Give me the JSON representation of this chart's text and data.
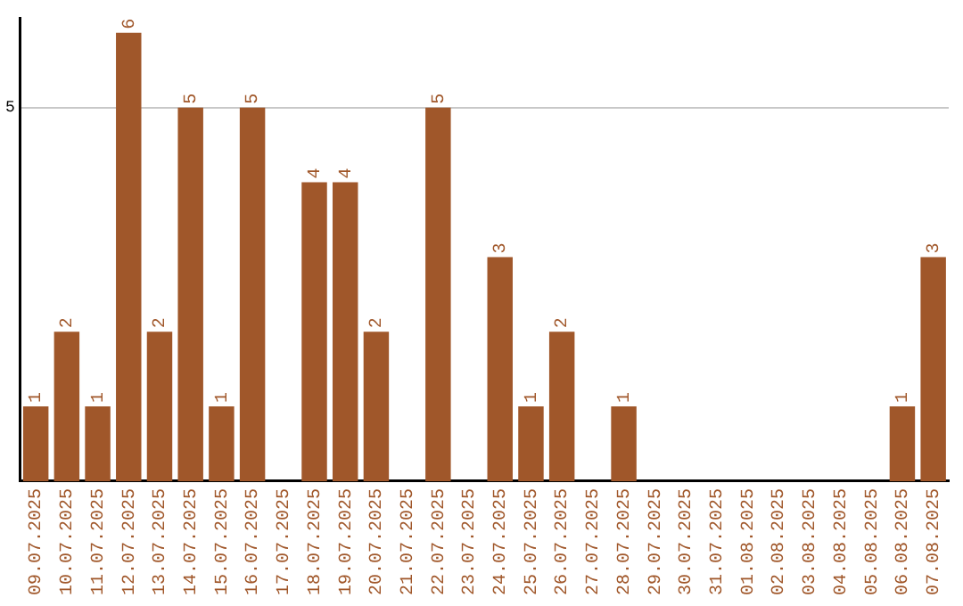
{
  "chart_data": {
    "type": "bar",
    "categories": [
      "09.07.2025",
      "10.07.2025",
      "11.07.2025",
      "12.07.2025",
      "13.07.2025",
      "14.07.2025",
      "15.07.2025",
      "16.07.2025",
      "17.07.2025",
      "18.07.2025",
      "19.07.2025",
      "20.07.2025",
      "21.07.2025",
      "22.07.2025",
      "23.07.2025",
      "24.07.2025",
      "25.07.2025",
      "26.07.2025",
      "27.07.2025",
      "28.07.2025",
      "29.07.2025",
      "30.07.2025",
      "31.07.2025",
      "01.08.2025",
      "02.08.2025",
      "03.08.2025",
      "04.08.2025",
      "05.08.2025",
      "06.08.2025",
      "07.08.2025"
    ],
    "values": [
      1,
      2,
      1,
      6,
      2,
      5,
      1,
      5,
      0,
      4,
      4,
      2,
      0,
      5,
      0,
      3,
      1,
      2,
      0,
      1,
      0,
      0,
      0,
      0,
      0,
      0,
      0,
      0,
      1,
      3
    ],
    "value_labels": [
      "1",
      "2",
      "1",
      "6",
      "2",
      "5",
      "1",
      "5",
      null,
      "4",
      "4",
      "2",
      null,
      "5",
      null,
      "3",
      "1",
      "2",
      null,
      "1",
      null,
      null,
      null,
      null,
      null,
      null,
      null,
      null,
      "1",
      "3"
    ],
    "color": "#a0572a",
    "ylim": [
      0,
      6.2
    ],
    "yticks": [
      5
    ],
    "grid": "y",
    "legend": false
  }
}
